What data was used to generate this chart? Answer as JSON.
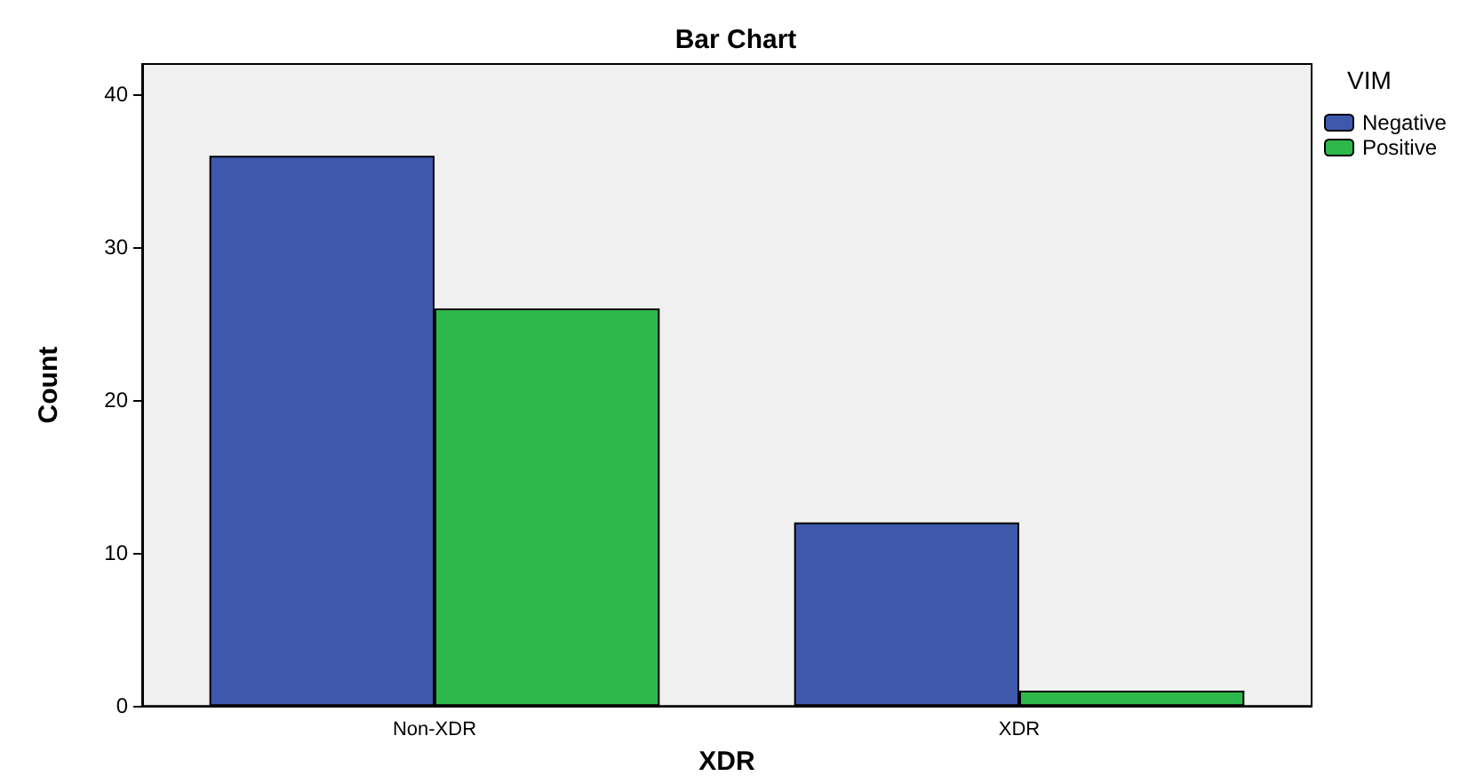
{
  "chart_data": {
    "type": "bar",
    "title": "Bar Chart",
    "xlabel": "XDR",
    "ylabel": "Count",
    "legend_title": "VIM",
    "legend": "top right",
    "categories": [
      "Non-XDR",
      "XDR"
    ],
    "series": [
      {
        "name": "Negative",
        "color": "#3e58ac",
        "values": [
          36,
          12
        ]
      },
      {
        "name": "Positive",
        "color": "#2eb84b",
        "values": [
          26,
          1
        ]
      }
    ],
    "ylim": [
      0,
      42
    ],
    "yticks": [
      0,
      10,
      20,
      30,
      40
    ],
    "grid": false
  }
}
